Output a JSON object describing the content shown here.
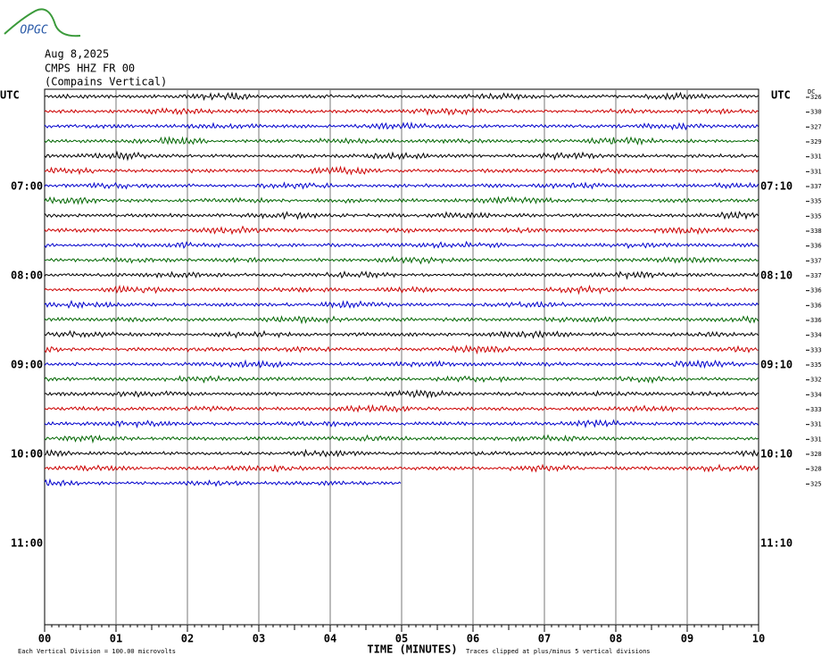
{
  "logo": "OPGC",
  "header": {
    "date": "Aug 8,2025",
    "station": "CMPS HHZ FR 00",
    "description": "(Compains Vertical)"
  },
  "left_axis": {
    "title": "UTC",
    "labels": [
      {
        "row": 6,
        "text": "07:00"
      },
      {
        "row": 12,
        "text": "08:00"
      },
      {
        "row": 18,
        "text": "09:00"
      },
      {
        "row": 24,
        "text": "10:00"
      },
      {
        "row": 30,
        "text": "11:00"
      }
    ]
  },
  "right_axis": {
    "title": "UTC",
    "labels": [
      {
        "row": 6,
        "text": "07:10"
      },
      {
        "row": 12,
        "text": "08:10"
      },
      {
        "row": 18,
        "text": "09:10"
      },
      {
        "row": 24,
        "text": "10:10"
      },
      {
        "row": 30,
        "text": "11:10"
      }
    ]
  },
  "dc": {
    "title": "DC",
    "values": [
      326,
      330,
      327,
      329,
      331,
      331,
      337,
      335,
      335,
      338,
      336,
      337,
      337,
      336,
      336,
      336,
      334,
      333,
      335,
      332,
      334,
      333,
      331,
      331,
      328,
      328,
      325
    ]
  },
  "trace_colors": [
    "#000000",
    "#cc0000",
    "#0000cc",
    "#006600"
  ],
  "last_trace_end": 5,
  "x_axis": {
    "title": "TIME (MINUTES)",
    "ticks": [
      "00",
      "01",
      "02",
      "03",
      "04",
      "05",
      "06",
      "07",
      "08",
      "09",
      "10"
    ]
  },
  "footer": {
    "division": "Each Vertical Division =  100.00 microvolts",
    "clipping": "Traces clipped at plus/minus 5 vertical divisions"
  }
}
